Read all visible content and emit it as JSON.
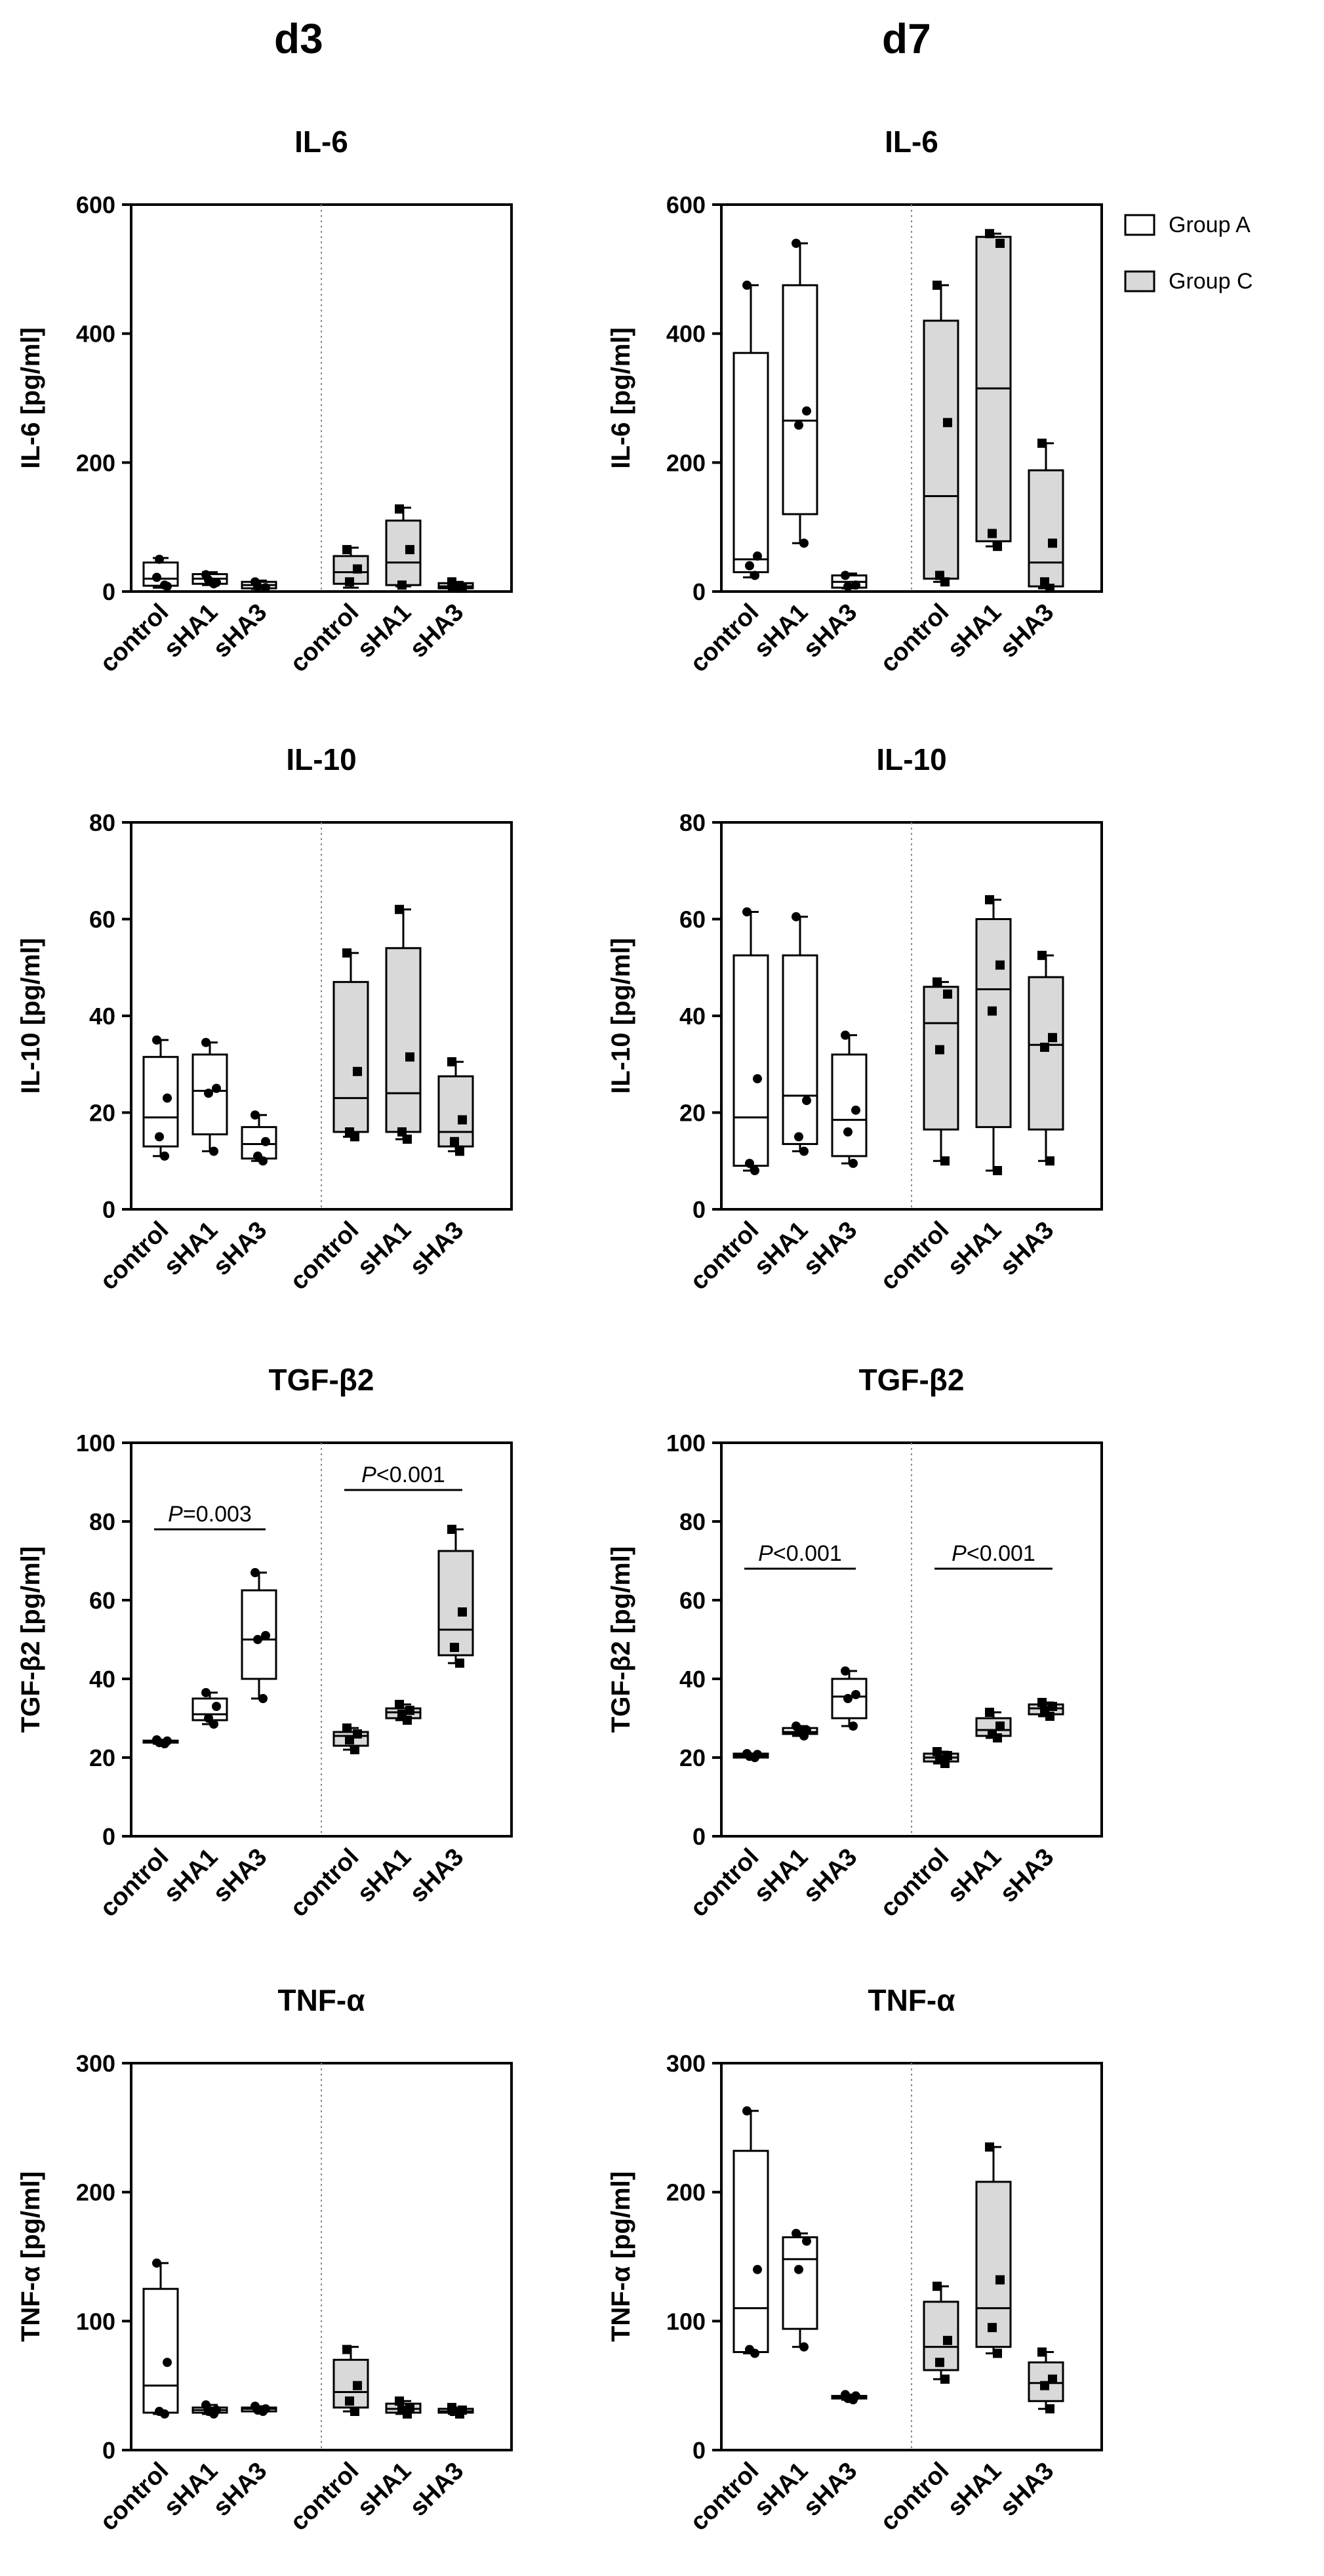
{
  "columns": [
    "d3",
    "d7"
  ],
  "legend": [
    {
      "label": "Group A",
      "fill": "#ffffff"
    },
    {
      "label": "Group C",
      "fill": "#d9d9d9"
    }
  ],
  "colors": {
    "group_a_fill": "#ffffff",
    "group_c_fill": "#d9d9d9",
    "axis": "#000000",
    "divider": "#8c8c8c"
  },
  "chart_data": [
    {
      "id": "il6-d3",
      "type": "box",
      "title": "IL-6",
      "ylabel": "IL-6 [pg/ml]",
      "ylim": [
        0,
        600
      ],
      "yticks": [
        0,
        200,
        400,
        600
      ],
      "categories": [
        "control",
        "sHA1",
        "sHA3",
        "control",
        "sHA1",
        "sHA3"
      ],
      "groups": [
        "Group A",
        "Group A",
        "Group A",
        "Group C",
        "Group C",
        "Group C"
      ],
      "boxes": [
        {
          "min": 6,
          "q1": 9,
          "median": 20,
          "q3": 45,
          "max": 52,
          "points": [
            22,
            8,
            50,
            10
          ]
        },
        {
          "min": 10,
          "q1": 12,
          "median": 20,
          "q3": 27,
          "max": 30,
          "points": [
            26,
            14,
            18,
            12
          ]
        },
        {
          "min": 4,
          "q1": 5,
          "median": 10,
          "q3": 15,
          "max": 17,
          "points": [
            15,
            6,
            8
          ]
        },
        {
          "min": 6,
          "q1": 12,
          "median": 30,
          "q3": 55,
          "max": 68,
          "points": [
            65,
            35,
            15
          ]
        },
        {
          "min": 8,
          "q1": 10,
          "median": 45,
          "q3": 110,
          "max": 130,
          "points": [
            128,
            65,
            10
          ]
        },
        {
          "min": 3,
          "q1": 5,
          "median": 8,
          "q3": 13,
          "max": 15,
          "points": [
            15,
            5,
            9
          ]
        }
      ],
      "annotations": []
    },
    {
      "id": "il6-d7",
      "type": "box",
      "title": "IL-6",
      "ylabel": "IL-6 [pg/ml]",
      "ylim": [
        0,
        600
      ],
      "yticks": [
        0,
        200,
        400,
        600
      ],
      "categories": [
        "control",
        "sHA1",
        "sHA3",
        "control",
        "sHA1",
        "sHA3"
      ],
      "groups": [
        "Group A",
        "Group A",
        "Group A",
        "Group C",
        "Group C",
        "Group C"
      ],
      "boxes": [
        {
          "min": 22,
          "q1": 30,
          "median": 50,
          "q3": 370,
          "max": 475,
          "points": [
            475,
            55,
            40,
            25
          ]
        },
        {
          "min": 75,
          "q1": 120,
          "median": 265,
          "q3": 475,
          "max": 540,
          "points": [
            540,
            280,
            258,
            75
          ]
        },
        {
          "min": 5,
          "q1": 6,
          "median": 15,
          "q3": 25,
          "max": 28,
          "points": [
            25,
            10,
            8
          ]
        },
        {
          "min": 15,
          "q1": 20,
          "median": 148,
          "q3": 420,
          "max": 475,
          "points": [
            475,
            262,
            25,
            15
          ]
        },
        {
          "min": 70,
          "q1": 78,
          "median": 315,
          "q3": 550,
          "max": 555,
          "points": [
            555,
            540,
            90,
            70
          ]
        },
        {
          "min": 5,
          "q1": 8,
          "median": 45,
          "q3": 188,
          "max": 230,
          "points": [
            230,
            75,
            15,
            5
          ]
        }
      ],
      "annotations": []
    },
    {
      "id": "il10-d3",
      "type": "box",
      "title": "IL-10",
      "ylabel": "IL-10 [pg/ml]",
      "ylim": [
        0,
        80
      ],
      "yticks": [
        0,
        20,
        40,
        60,
        80
      ],
      "categories": [
        "control",
        "sHA1",
        "sHA3",
        "control",
        "sHA1",
        "sHA3"
      ],
      "groups": [
        "Group A",
        "Group A",
        "Group A",
        "Group C",
        "Group C",
        "Group C"
      ],
      "boxes": [
        {
          "min": 11,
          "q1": 13,
          "median": 19,
          "q3": 31.5,
          "max": 35,
          "points": [
            35,
            23,
            15,
            11
          ]
        },
        {
          "min": 12,
          "q1": 15.5,
          "median": 24.5,
          "q3": 32,
          "max": 34.5,
          "points": [
            34.5,
            25,
            24,
            12
          ]
        },
        {
          "min": 10,
          "q1": 10.5,
          "median": 13.5,
          "q3": 17,
          "max": 19.5,
          "points": [
            19.5,
            14,
            11,
            10
          ]
        },
        {
          "min": 15,
          "q1": 16,
          "median": 23,
          "q3": 47,
          "max": 53,
          "points": [
            53,
            28.5,
            16,
            15
          ]
        },
        {
          "min": 14.5,
          "q1": 16,
          "median": 24,
          "q3": 54,
          "max": 62,
          "points": [
            62,
            31.5,
            16,
            14.5
          ]
        },
        {
          "min": 12,
          "q1": 13,
          "median": 16,
          "q3": 27.5,
          "max": 30.5,
          "points": [
            30.5,
            18.5,
            14,
            12
          ]
        }
      ],
      "annotations": []
    },
    {
      "id": "il10-d7",
      "type": "box",
      "title": "IL-10",
      "ylabel": "IL-10 [pg/ml]",
      "ylim": [
        0,
        80
      ],
      "yticks": [
        0,
        20,
        40,
        60,
        80
      ],
      "categories": [
        "control",
        "sHA1",
        "sHA3",
        "control",
        "sHA1",
        "sHA3"
      ],
      "groups": [
        "Group A",
        "Group A",
        "Group A",
        "Group C",
        "Group C",
        "Group C"
      ],
      "boxes": [
        {
          "min": 8,
          "q1": 9,
          "median": 19,
          "q3": 52.5,
          "max": 61.5,
          "points": [
            61.5,
            27,
            9.5,
            8
          ]
        },
        {
          "min": 12,
          "q1": 13.5,
          "median": 23.5,
          "q3": 52.5,
          "max": 60.5,
          "points": [
            60.5,
            22.5,
            15,
            12
          ]
        },
        {
          "min": 9.5,
          "q1": 11,
          "median": 18.5,
          "q3": 32,
          "max": 36,
          "points": [
            36,
            20.5,
            16,
            9.5
          ]
        },
        {
          "min": 10,
          "q1": 16.5,
          "median": 38.5,
          "q3": 46,
          "max": 47,
          "points": [
            47,
            44.5,
            33,
            10
          ]
        },
        {
          "min": 8,
          "q1": 17,
          "median": 45.5,
          "q3": 60,
          "max": 64,
          "points": [
            64,
            50.5,
            41,
            8
          ]
        },
        {
          "min": 10,
          "q1": 16.5,
          "median": 34,
          "q3": 48,
          "max": 52.5,
          "points": [
            52.5,
            35.5,
            33.5,
            10
          ]
        }
      ],
      "annotations": []
    },
    {
      "id": "tgf-d3",
      "type": "box",
      "title": "TGF-β2",
      "ylabel": "TGF-β2 [pg/ml]",
      "ylim": [
        0,
        100
      ],
      "yticks": [
        0,
        20,
        40,
        60,
        80,
        100
      ],
      "categories": [
        "control",
        "sHA1",
        "sHA3",
        "control",
        "sHA1",
        "sHA3"
      ],
      "groups": [
        "Group A",
        "Group A",
        "Group A",
        "Group C",
        "Group C",
        "Group C"
      ],
      "boxes": [
        {
          "min": 23.5,
          "q1": 23.8,
          "median": 24,
          "q3": 24.3,
          "max": 24.5,
          "points": [
            24.5,
            24.2,
            23.8,
            23.5
          ]
        },
        {
          "min": 28.5,
          "q1": 29.5,
          "median": 31,
          "q3": 35,
          "max": 36.5,
          "points": [
            36.5,
            33,
            30,
            28.5
          ]
        },
        {
          "min": 35,
          "q1": 40,
          "median": 50,
          "q3": 62.5,
          "max": 67,
          "points": [
            67,
            51,
            50,
            35
          ]
        },
        {
          "min": 22,
          "q1": 23,
          "median": 25.5,
          "q3": 26.5,
          "max": 27.5,
          "points": [
            27.5,
            26,
            24.5,
            22
          ]
        },
        {
          "min": 29.5,
          "q1": 30,
          "median": 31.5,
          "q3": 32.5,
          "max": 33.5,
          "points": [
            33.5,
            32,
            31,
            29.5
          ]
        },
        {
          "min": 44,
          "q1": 46,
          "median": 52.5,
          "q3": 72.5,
          "max": 78,
          "points": [
            78,
            57,
            48,
            44
          ]
        }
      ],
      "annotations": [
        {
          "from": 0,
          "to": 2,
          "y": 78,
          "p_label": "P",
          "text": "=0.003"
        },
        {
          "from": 3,
          "to": 5,
          "y": 88,
          "p_label": "P",
          "text": "<0.001"
        }
      ]
    },
    {
      "id": "tgf-d7",
      "type": "box",
      "title": "TGF-β2",
      "ylabel": "TGF-β2 [pg/ml]",
      "ylim": [
        0,
        100
      ],
      "yticks": [
        0,
        20,
        40,
        60,
        80,
        100
      ],
      "categories": [
        "control",
        "sHA1",
        "sHA3",
        "control",
        "sHA1",
        "sHA3"
      ],
      "groups": [
        "Group A",
        "Group A",
        "Group A",
        "Group C",
        "Group C",
        "Group C"
      ],
      "boxes": [
        {
          "min": 20,
          "q1": 20,
          "median": 20.5,
          "q3": 21,
          "max": 21,
          "points": [
            21,
            20.8,
            20.3,
            20
          ]
        },
        {
          "min": 25.5,
          "q1": 26,
          "median": 26.5,
          "q3": 27.5,
          "max": 28,
          "points": [
            28,
            27,
            26.5,
            25.5
          ]
        },
        {
          "min": 28,
          "q1": 30,
          "median": 35.5,
          "q3": 40,
          "max": 42,
          "points": [
            42,
            36,
            35,
            28
          ]
        },
        {
          "min": 18.5,
          "q1": 19,
          "median": 20,
          "q3": 21,
          "max": 21.5,
          "points": [
            21.5,
            20.5,
            19.5,
            18.5
          ]
        },
        {
          "min": 25,
          "q1": 25.5,
          "median": 27,
          "q3": 30,
          "max": 31.5,
          "points": [
            31.5,
            28,
            26,
            25
          ]
        },
        {
          "min": 30.5,
          "q1": 31,
          "median": 32.5,
          "q3": 33.5,
          "max": 34,
          "points": [
            34,
            33,
            32,
            30.5
          ]
        }
      ],
      "annotations": [
        {
          "from": 0,
          "to": 2,
          "y": 68,
          "p_label": "P",
          "text": "<0.001"
        },
        {
          "from": 3,
          "to": 5,
          "y": 68,
          "p_label": "P",
          "text": "<0.001"
        }
      ]
    },
    {
      "id": "tnf-d3",
      "type": "box",
      "title": "TNF-α",
      "ylabel": "TNF-α [pg/ml]",
      "ylim": [
        0,
        300
      ],
      "yticks": [
        0,
        100,
        200,
        300
      ],
      "categories": [
        "control",
        "sHA1",
        "sHA3",
        "control",
        "sHA1",
        "sHA3"
      ],
      "groups": [
        "Group A",
        "Group A",
        "Group A",
        "Group C",
        "Group C",
        "Group C"
      ],
      "boxes": [
        {
          "min": 28,
          "q1": 29,
          "median": 50,
          "q3": 125,
          "max": 145,
          "points": [
            145,
            68,
            30,
            28
          ]
        },
        {
          "min": 28,
          "q1": 29,
          "median": 31,
          "q3": 33,
          "max": 35,
          "points": [
            35,
            31,
            30,
            28
          ]
        },
        {
          "min": 30,
          "q1": 30,
          "median": 32,
          "q3": 33,
          "max": 34,
          "points": [
            34,
            32,
            31,
            30
          ]
        },
        {
          "min": 30,
          "q1": 33,
          "median": 45,
          "q3": 70,
          "max": 80,
          "points": [
            78,
            50,
            38,
            30
          ]
        },
        {
          "min": 28,
          "q1": 29,
          "median": 32,
          "q3": 36,
          "max": 38,
          "points": [
            38,
            33,
            31,
            28
          ]
        },
        {
          "min": 28,
          "q1": 29,
          "median": 30,
          "q3": 32,
          "max": 33,
          "points": [
            33,
            31,
            30,
            28
          ]
        }
      ],
      "annotations": []
    },
    {
      "id": "tnf-d7",
      "type": "box",
      "title": "TNF-α",
      "ylabel": "TNF-α [pg/ml]",
      "ylim": [
        0,
        300
      ],
      "yticks": [
        0,
        100,
        200,
        300
      ],
      "categories": [
        "control",
        "sHA1",
        "sHA3",
        "control",
        "sHA1",
        "sHA3"
      ],
      "groups": [
        "Group A",
        "Group A",
        "Group A",
        "Group C",
        "Group C",
        "Group C"
      ],
      "boxes": [
        {
          "min": 75,
          "q1": 76,
          "median": 110,
          "q3": 232,
          "max": 263,
          "points": [
            263,
            140,
            78,
            75
          ]
        },
        {
          "min": 80,
          "q1": 94,
          "median": 148,
          "q3": 165,
          "max": 168,
          "points": [
            168,
            162,
            140,
            80
          ]
        },
        {
          "min": 39,
          "q1": 40,
          "median": 41,
          "q3": 42,
          "max": 43,
          "points": [
            43,
            42,
            40,
            39
          ]
        },
        {
          "min": 55,
          "q1": 62,
          "median": 80,
          "q3": 115,
          "max": 127,
          "points": [
            127,
            85,
            68,
            55
          ]
        },
        {
          "min": 75,
          "q1": 80,
          "median": 110,
          "q3": 208,
          "max": 235,
          "points": [
            235,
            132,
            95,
            75
          ]
        },
        {
          "min": 32,
          "q1": 38,
          "median": 52,
          "q3": 68,
          "max": 76,
          "points": [
            76,
            55,
            50,
            32
          ]
        }
      ],
      "annotations": []
    }
  ]
}
